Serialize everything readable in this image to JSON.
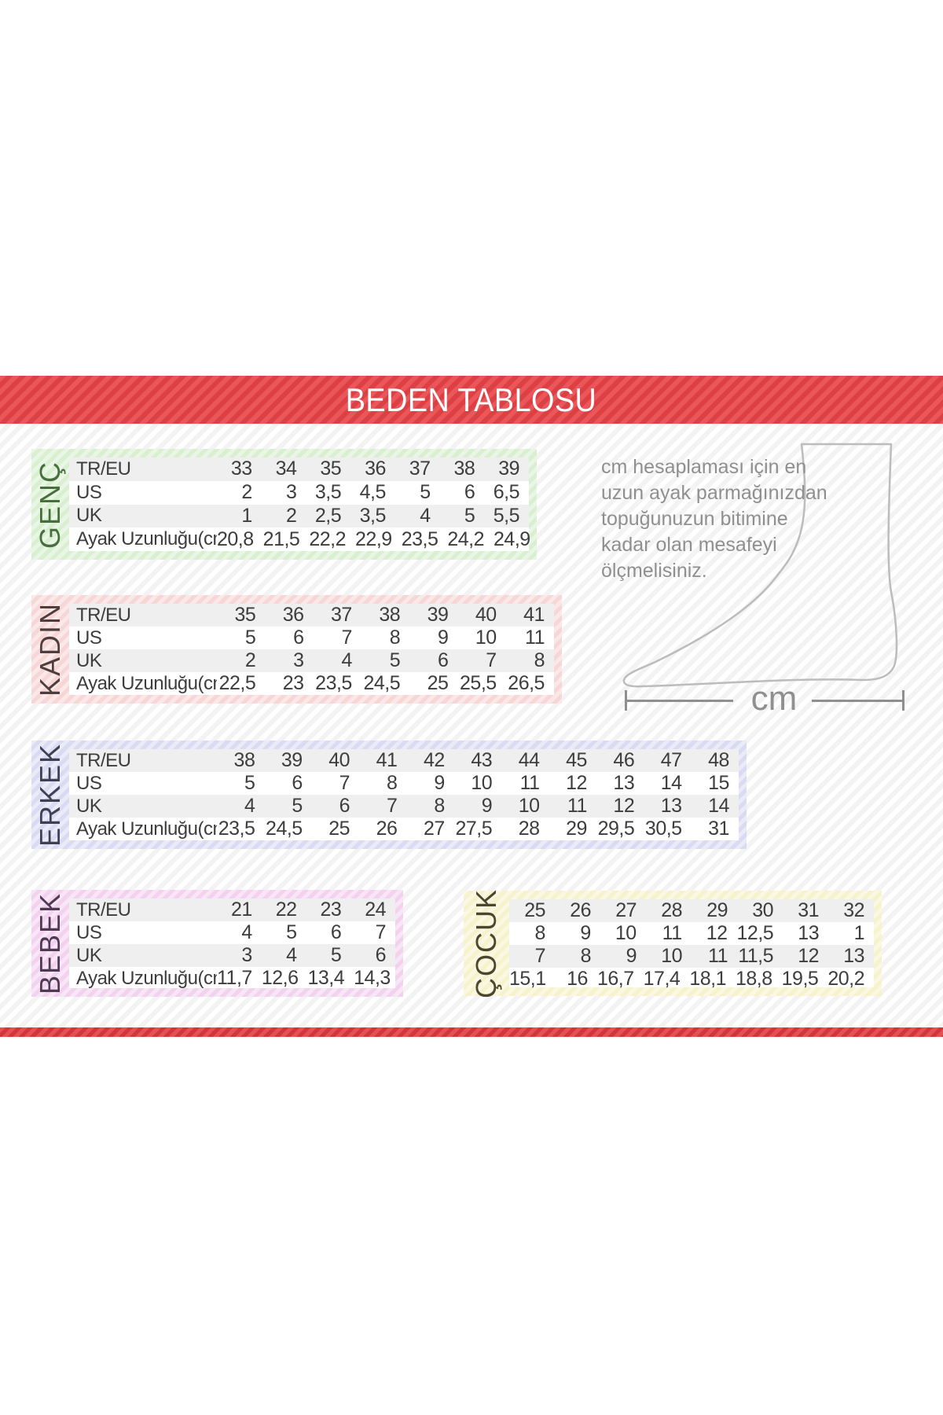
{
  "header": {
    "title": "BEDEN TABLOSU"
  },
  "row_labels": [
    "TR/EU",
    "US",
    "UK",
    "Ayak Uzunluğu(cm)"
  ],
  "tables": [
    {
      "id": "genc",
      "label": "GENÇ",
      "frame_color": "#d8efd0",
      "label_color": "#476f3e",
      "show_row_labels": true,
      "rows": [
        [
          "33",
          "34",
          "35",
          "36",
          "37",
          "38",
          "39"
        ],
        [
          "2",
          "3",
          "3,5",
          "4,5",
          "5",
          "6",
          "6,5"
        ],
        [
          "1",
          "2",
          "2,5",
          "3,5",
          "4",
          "5",
          "5,5"
        ],
        [
          "20,8",
          "21,5",
          "22,2",
          "22,9",
          "23,5",
          "24,2",
          "24,9"
        ]
      ]
    },
    {
      "id": "kadin",
      "label": "KADIN",
      "frame_color": "#f7d6d6",
      "label_color": "#4e3d3d",
      "show_row_labels": true,
      "rows": [
        [
          "35",
          "36",
          "37",
          "38",
          "39",
          "40",
          "41"
        ],
        [
          "5",
          "6",
          "7",
          "8",
          "9",
          "10",
          "11"
        ],
        [
          "2",
          "3",
          "4",
          "5",
          "6",
          "7",
          "8"
        ],
        [
          "22,5",
          "23",
          "23,5",
          "24,5",
          "25",
          "25,5",
          "26,5"
        ]
      ]
    },
    {
      "id": "erkek",
      "label": "ERKEK",
      "frame_color": "#dadaf2",
      "label_color": "#3e4154",
      "show_row_labels": true,
      "rows": [
        [
          "38",
          "39",
          "40",
          "41",
          "42",
          "43",
          "44",
          "45",
          "46",
          "47",
          "48"
        ],
        [
          "5",
          "6",
          "7",
          "8",
          "9",
          "10",
          "11",
          "12",
          "13",
          "14",
          "15"
        ],
        [
          "4",
          "5",
          "6",
          "7",
          "8",
          "9",
          "10",
          "11",
          "12",
          "13",
          "14"
        ],
        [
          "23,5",
          "24,5",
          "25",
          "26",
          "27",
          "27,5",
          "28",
          "29",
          "29,5",
          "30,5",
          "31"
        ]
      ]
    },
    {
      "id": "bebek",
      "label": "BEBEK",
      "frame_color": "#f3d2ef",
      "label_color": "#4e3b53",
      "show_row_labels": true,
      "rows": [
        [
          "21",
          "22",
          "23",
          "24"
        ],
        [
          "4",
          "5",
          "6",
          "7"
        ],
        [
          "3",
          "4",
          "5",
          "6"
        ],
        [
          "11,7",
          "12,6",
          "13,4",
          "14,3"
        ]
      ]
    },
    {
      "id": "cocuk",
      "label": "ÇOCUK",
      "frame_color": "#f6f2cb",
      "label_color": "#4a462f",
      "show_row_labels": false,
      "rows": [
        [
          "25",
          "26",
          "27",
          "28",
          "29",
          "30",
          "31",
          "32"
        ],
        [
          "8",
          "9",
          "10",
          "11",
          "12",
          "12,5",
          "13",
          "1"
        ],
        [
          "7",
          "8",
          "9",
          "10",
          "11",
          "11,5",
          "12",
          "13"
        ],
        [
          "15,1",
          "16",
          "16,7",
          "17,4",
          "18,1",
          "18,8",
          "19,5",
          "20,2"
        ]
      ]
    }
  ],
  "measure_note": {
    "lines": [
      "cm hesaplaması için en",
      "uzun ayak parmağınızdan",
      "topuğunuzun bitimine",
      "kadar olan mesafeyi",
      "ölçmelisiniz."
    ]
  },
  "cm_label": "cm",
  "colors": {
    "banner_red": "#e84347",
    "bottom_bar_red": "#e2383d",
    "table_text": "#3d3d3d",
    "row_stripe": "#efefef",
    "note_gray": "#8f8f8f",
    "foot_outline_gray": "#bcbcbc"
  }
}
